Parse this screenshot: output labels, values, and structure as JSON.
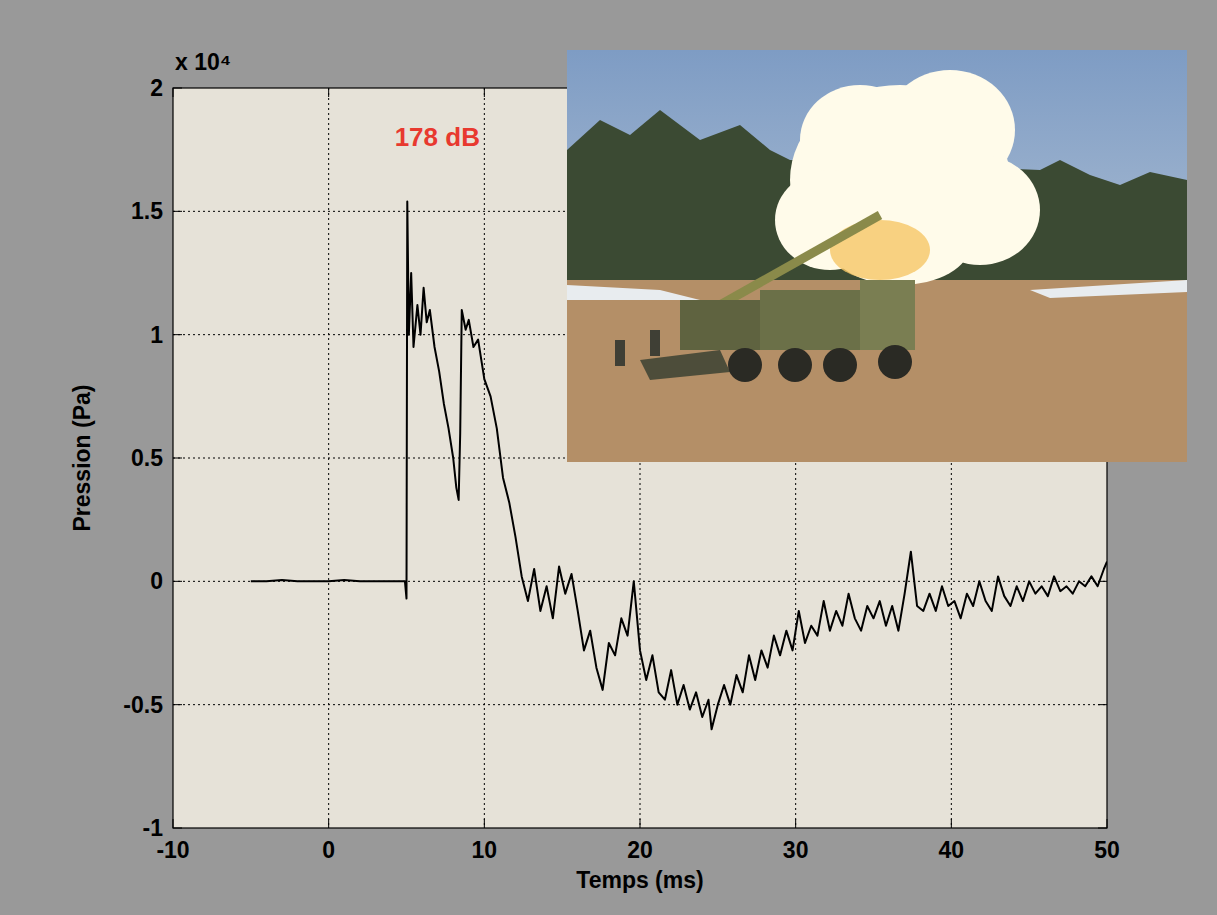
{
  "chart_data": {
    "type": "line",
    "x_label": "Temps (ms)",
    "y_label": "Pression (Pa)",
    "y_multiplier": "x 10⁴",
    "annotation": {
      "text": "178 dB",
      "color": "#e8392f"
    },
    "color": "#000000",
    "grid": true,
    "xlim": [
      -10,
      50
    ],
    "ylim": [
      -1,
      2
    ],
    "xticks": [
      -10,
      0,
      10,
      20,
      30,
      40,
      50
    ],
    "yticks": [
      -1,
      -0.5,
      0,
      0.5,
      1,
      1.5,
      2
    ],
    "x": [
      -5,
      -4,
      -3,
      -2,
      -1,
      0,
      1,
      2,
      3,
      4,
      4.9,
      5.0,
      5.05,
      5.15,
      5.3,
      5.45,
      5.7,
      5.9,
      6.1,
      6.3,
      6.5,
      6.8,
      7.1,
      7.4,
      7.7,
      8.0,
      8.2,
      8.35,
      8.45,
      8.55,
      8.8,
      9.0,
      9.3,
      9.6,
      10.0,
      10.4,
      10.8,
      11.2,
      11.6,
      12.0,
      12.4,
      12.8,
      13.2,
      13.6,
      14,
      14.4,
      14.8,
      15.2,
      15.6,
      16,
      16.4,
      16.8,
      17.2,
      17.6,
      18,
      18.4,
      18.8,
      19.2,
      19.6,
      20,
      20.4,
      20.8,
      21.2,
      21.6,
      22,
      22.4,
      22.8,
      23.2,
      23.6,
      24,
      24.4,
      24.6,
      25,
      25.4,
      25.8,
      26.2,
      26.6,
      27,
      27.4,
      27.8,
      28.2,
      28.6,
      29,
      29.4,
      29.8,
      30.2,
      30.6,
      31,
      31.4,
      31.8,
      32.2,
      32.6,
      33,
      33.4,
      33.8,
      34.2,
      34.6,
      35,
      35.4,
      35.8,
      36.2,
      36.6,
      37,
      37.4,
      37.8,
      38.2,
      38.6,
      39,
      39.4,
      39.8,
      40.2,
      40.6,
      41,
      41.4,
      41.8,
      42.2,
      42.6,
      43,
      43.4,
      43.8,
      44.2,
      44.6,
      45,
      45.4,
      45.8,
      46.2,
      46.6,
      47,
      47.4,
      47.8,
      48.2,
      48.6,
      49,
      49.4,
      49.8,
      50
    ],
    "values": [
      0,
      0,
      0.005,
      0,
      0,
      0,
      0.005,
      0,
      0,
      0,
      0,
      -0.07,
      1.54,
      1.0,
      1.25,
      0.95,
      1.12,
      1.0,
      1.19,
      1.05,
      1.1,
      0.95,
      0.85,
      0.72,
      0.62,
      0.5,
      0.38,
      0.33,
      0.6,
      1.1,
      1.02,
      1.06,
      0.95,
      0.98,
      0.82,
      0.75,
      0.62,
      0.42,
      0.32,
      0.18,
      0.02,
      -0.08,
      0.05,
      -0.12,
      -0.02,
      -0.15,
      0.06,
      -0.05,
      0.03,
      -0.12,
      -0.28,
      -0.2,
      -0.35,
      -0.44,
      -0.25,
      -0.3,
      -0.15,
      -0.22,
      0.0,
      -0.28,
      -0.4,
      -0.3,
      -0.45,
      -0.48,
      -0.36,
      -0.5,
      -0.42,
      -0.52,
      -0.45,
      -0.55,
      -0.48,
      -0.6,
      -0.5,
      -0.42,
      -0.5,
      -0.38,
      -0.45,
      -0.3,
      -0.4,
      -0.28,
      -0.35,
      -0.22,
      -0.3,
      -0.2,
      -0.28,
      -0.12,
      -0.25,
      -0.18,
      -0.22,
      -0.08,
      -0.2,
      -0.12,
      -0.18,
      -0.05,
      -0.15,
      -0.2,
      -0.1,
      -0.15,
      -0.08,
      -0.18,
      -0.1,
      -0.2,
      -0.05,
      0.12,
      -0.1,
      -0.12,
      -0.05,
      -0.12,
      -0.02,
      -0.1,
      -0.08,
      -0.15,
      -0.05,
      -0.1,
      0.0,
      -0.08,
      -0.12,
      0.02,
      -0.06,
      -0.1,
      -0.02,
      -0.08,
      0.0,
      -0.05,
      -0.02,
      -0.06,
      0.02,
      -0.04,
      -0.02,
      -0.05,
      0.0,
      -0.02,
      0.02,
      -0.02,
      0.05,
      0.08
    ]
  }
}
